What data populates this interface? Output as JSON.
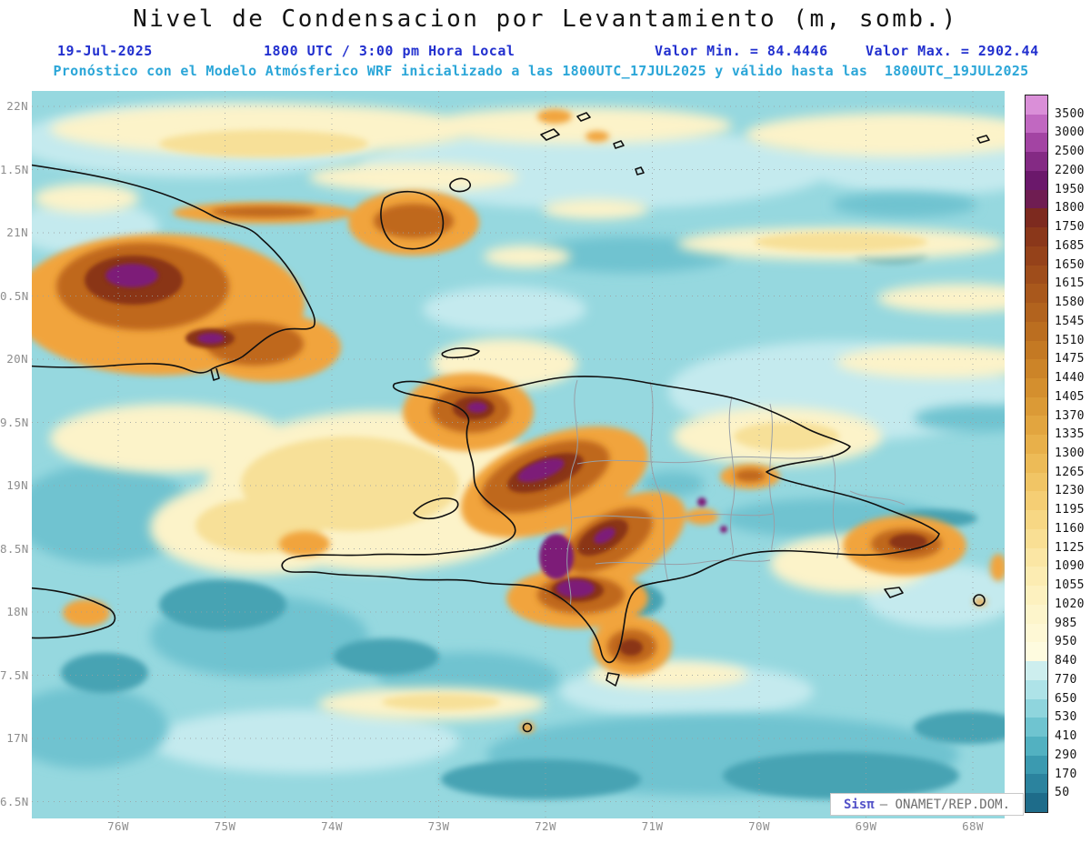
{
  "theme": {
    "header_blue": "#2230cf",
    "header_cyan": "#2ba6d8",
    "sea_base": "#96d8df"
  },
  "header": {
    "title": "Nivel de Condensacion por Levantamiento (m, somb.)",
    "date": "19-Jul-2025",
    "time": "1800 UTC / 3:00 pm Hora Local",
    "min_label": "Valor Min. = 84.4446",
    "max_label": "Valor Max. = 2902.44",
    "model_line": "Pronóstico con el Modelo Atmósferico WRF inicializado a las 1800UTC_17JUL2025 y válido hasta las  1800UTC_19JUL2025"
  },
  "map": {
    "lat_ticks": [
      "22N",
      "1.5N",
      "21N",
      "0.5N",
      "20N",
      "9.5N",
      "19N",
      "8.5N",
      "18N",
      "7.5N",
      "17N",
      "6.5N"
    ],
    "lon_ticks": [
      "76W",
      "75W",
      "74W",
      "73W",
      "72W",
      "71W",
      "70W",
      "69W",
      "68W"
    ]
  },
  "colorbar": {
    "labels": [
      3500,
      3000,
      2500,
      2200,
      1950,
      1800,
      1750,
      1685,
      1650,
      1615,
      1580,
      1545,
      1510,
      1475,
      1440,
      1405,
      1370,
      1335,
      1300,
      1265,
      1230,
      1195,
      1160,
      1125,
      1090,
      1055,
      1020,
      985,
      950,
      840,
      770,
      650,
      530,
      410,
      290,
      170,
      50
    ],
    "colors": [
      "#da8fd8",
      "#c168c1",
      "#a344a3",
      "#842a84",
      "#6b186b",
      "#6f1d52",
      "#7d2a1f",
      "#8a371a",
      "#95421a",
      "#9f4d1b",
      "#a9581c",
      "#b2631e",
      "#bb6e20",
      "#c47923",
      "#cc8428",
      "#d48f2e",
      "#db9a36",
      "#e2a53f",
      "#e8b04a",
      "#edbb57",
      "#f1c565",
      "#f5ce74",
      "#f7d784",
      "#f9df94",
      "#fbe6a4",
      "#fcecb2",
      "#fdf1bf",
      "#fdf5cb",
      "#fef8d5",
      "#fefbdf",
      "#cdeeee",
      "#aee3e8",
      "#8fd5dd",
      "#6fc4d0",
      "#52b1c1",
      "#3b9ab0",
      "#2b839e",
      "#1e6c8a"
    ]
  },
  "credit": {
    "brand": "Sisπ",
    "org": "— ONAMET/REP.DOM."
  }
}
